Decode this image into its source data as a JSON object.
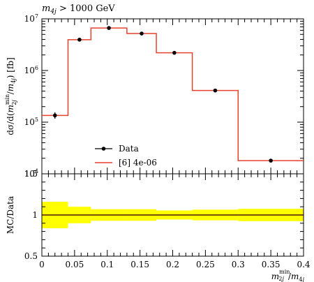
{
  "chart_data": [
    {
      "panel": "main",
      "type": "line",
      "title": "m_4j > 1000 GeV",
      "ylabel": "dσ/d(m_2j^min/m_4j) [fb]",
      "xlim": [
        0,
        0.4
      ],
      "ylim": [
        10000,
        10000000
      ],
      "yscale": "log",
      "bin_edges": [
        0,
        0.04,
        0.075,
        0.13,
        0.175,
        0.23,
        0.3,
        0.4
      ],
      "series": [
        {
          "name": "Data",
          "style": "points-with-errorbars",
          "color": "#000000",
          "x": [
            0.02,
            0.0575,
            0.1025,
            0.1525,
            0.2025,
            0.265,
            0.35
          ],
          "values": [
            135000,
            3950000,
            6650000,
            5200000,
            2200000,
            410000,
            18000
          ],
          "err_low": [
            117000,
            3650000,
            6350000,
            4980000,
            2130000,
            400000,
            17600
          ],
          "err_high": [
            155000,
            4300000,
            6950000,
            5450000,
            2280000,
            422000,
            18400
          ]
        },
        {
          "name": "[6] 4e-06",
          "style": "histogram-step",
          "color": "#e8412c",
          "values": [
            135000,
            3950000,
            6650000,
            5200000,
            2200000,
            410000,
            18000
          ]
        }
      ],
      "yticks": [
        {
          "label": "10^4",
          "value": 10000
        },
        {
          "label": "10^5",
          "value": 100000
        },
        {
          "label": "10^6",
          "value": 1000000
        },
        {
          "label": "10^7",
          "value": 10000000
        }
      ],
      "legend": "lower-left"
    },
    {
      "panel": "ratio",
      "type": "line",
      "ylabel": "MC/Data",
      "xlabel": "m_2j^min/m_4j",
      "xlim": [
        0,
        0.4
      ],
      "ylim": [
        0.5,
        1.5
      ],
      "yticks": [
        "0.5",
        "1",
        "1.5"
      ],
      "xticks": [
        "0",
        "0.05",
        "0.1",
        "0.15",
        "0.2",
        "0.25",
        "0.3",
        "0.35",
        "0.4"
      ],
      "xtick_values": [
        0,
        0.05,
        0.1,
        0.15,
        0.2,
        0.25,
        0.3,
        0.35,
        0.4
      ],
      "band_color": "#ffff00",
      "ratio_line_color": "#e8412c",
      "band_low": [
        0.84,
        0.9,
        0.93,
        0.93,
        0.945,
        0.935,
        0.925
      ],
      "band_high": [
        1.16,
        1.1,
        1.07,
        1.07,
        1.055,
        1.065,
        1.075
      ],
      "ratio": [
        1,
        1,
        1,
        1,
        1,
        1,
        1
      ]
    }
  ]
}
